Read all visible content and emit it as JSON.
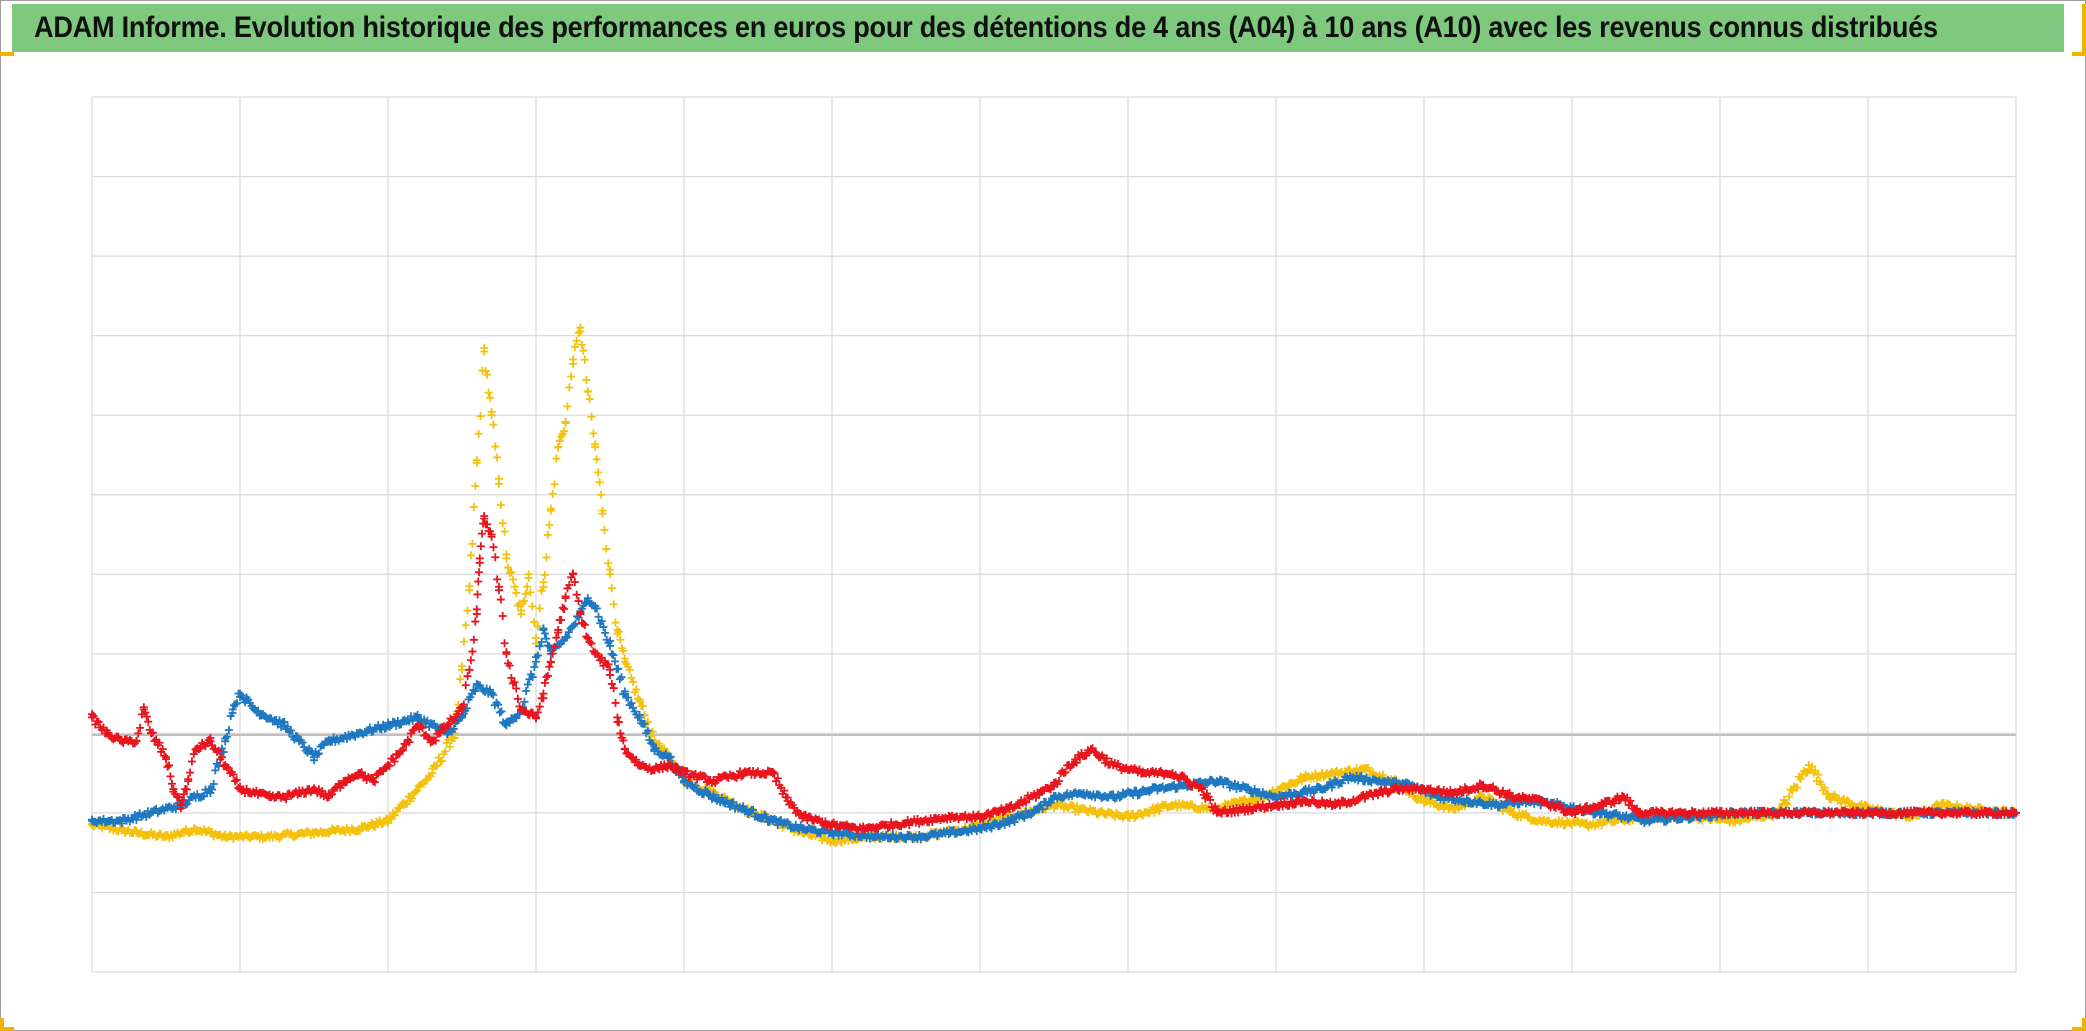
{
  "title": "ADAM Informe. Evolution historique des performances en euros pour des détentions de 4 ans (A04) à 10 ans (A10) avec les revenus connus distribués",
  "colors": {
    "title_background": "#7fc97f",
    "corner_marks": "#f0b400",
    "grid": "#d9d9d9",
    "baseline": "#bfbfbf"
  },
  "chart_data": {
    "type": "scatter",
    "title": "ADAM Informe. Evolution historique des performances en euros pour des détentions de 4 ans (A04) à 10 ans (A10) avec les revenus connus distribués",
    "marker": "plus",
    "grid": true,
    "xlim": [
      0,
      13
    ],
    "ylim": [
      -2,
      9
    ],
    "x_gridlines": 13,
    "y_gridlines": 11,
    "series": [
      {
        "color": "#f4c20d",
        "points": [
          [
            0,
            -0.15
          ],
          [
            0.3,
            -0.25
          ],
          [
            0.5,
            -0.3
          ],
          [
            0.7,
            -0.2
          ],
          [
            0.9,
            -0.3
          ],
          [
            1.2,
            -0.3
          ],
          [
            1.5,
            -0.25
          ],
          [
            1.8,
            -0.2
          ],
          [
            2.0,
            -0.1
          ],
          [
            2.15,
            0.2
          ],
          [
            2.3,
            0.5
          ],
          [
            2.45,
            1.0
          ],
          [
            2.5,
            1.8
          ],
          [
            2.55,
            2.8
          ],
          [
            2.6,
            4.4
          ],
          [
            2.65,
            5.8
          ],
          [
            2.7,
            5.0
          ],
          [
            2.75,
            4.2
          ],
          [
            2.8,
            3.2
          ],
          [
            2.9,
            2.5
          ],
          [
            2.95,
            3.0
          ],
          [
            3.0,
            2.2
          ],
          [
            3.05,
            2.9
          ],
          [
            3.1,
            3.8
          ],
          [
            3.15,
            4.6
          ],
          [
            3.2,
            4.9
          ],
          [
            3.25,
            5.7
          ],
          [
            3.3,
            6.1
          ],
          [
            3.35,
            5.3
          ],
          [
            3.4,
            4.6
          ],
          [
            3.45,
            3.8
          ],
          [
            3.5,
            3.0
          ],
          [
            3.55,
            2.3
          ],
          [
            3.6,
            1.9
          ],
          [
            3.7,
            1.4
          ],
          [
            3.8,
            0.9
          ],
          [
            3.9,
            0.7
          ],
          [
            4.0,
            0.4
          ],
          [
            4.2,
            0.25
          ],
          [
            4.4,
            0.05
          ],
          [
            4.6,
            -0.1
          ],
          [
            4.8,
            -0.25
          ],
          [
            5.0,
            -0.35
          ],
          [
            5.3,
            -0.3
          ],
          [
            5.6,
            -0.3
          ],
          [
            5.9,
            -0.2
          ],
          [
            6.1,
            -0.1
          ],
          [
            6.3,
            0.0
          ],
          [
            6.5,
            0.1
          ],
          [
            6.8,
            0.0
          ],
          [
            7.0,
            -0.05
          ],
          [
            7.3,
            0.1
          ],
          [
            7.6,
            0.05
          ],
          [
            7.9,
            0.2
          ],
          [
            8.2,
            0.45
          ],
          [
            8.4,
            0.5
          ],
          [
            8.6,
            0.55
          ],
          [
            8.8,
            0.4
          ],
          [
            9.0,
            0.15
          ],
          [
            9.2,
            0.05
          ],
          [
            9.4,
            0.2
          ],
          [
            9.6,
            0.0
          ],
          [
            9.8,
            -0.1
          ],
          [
            10.1,
            -0.15
          ],
          [
            10.5,
            -0.05
          ],
          [
            10.8,
            -0.05
          ],
          [
            11.1,
            -0.1
          ],
          [
            11.4,
            0.0
          ],
          [
            11.6,
            0.6
          ],
          [
            11.75,
            0.2
          ],
          [
            12.0,
            0.05
          ],
          [
            12.3,
            -0.05
          ],
          [
            12.5,
            0.1
          ],
          [
            12.7,
            0.05
          ],
          [
            13.0,
            0.0
          ]
        ]
      },
      {
        "color": "#1f78c1",
        "points": [
          [
            0,
            -0.1
          ],
          [
            0.2,
            -0.1
          ],
          [
            0.4,
            0.0
          ],
          [
            0.6,
            0.1
          ],
          [
            0.8,
            0.3
          ],
          [
            0.9,
            0.9
          ],
          [
            0.95,
            1.3
          ],
          [
            1.0,
            1.5
          ],
          [
            1.1,
            1.3
          ],
          [
            1.3,
            1.1
          ],
          [
            1.4,
            0.9
          ],
          [
            1.5,
            0.7
          ],
          [
            1.6,
            0.9
          ],
          [
            1.8,
            1.0
          ],
          [
            2.0,
            1.1
          ],
          [
            2.2,
            1.2
          ],
          [
            2.4,
            1.0
          ],
          [
            2.5,
            1.2
          ],
          [
            2.6,
            1.6
          ],
          [
            2.7,
            1.5
          ],
          [
            2.8,
            1.1
          ],
          [
            2.9,
            1.3
          ],
          [
            3.0,
            1.9
          ],
          [
            3.05,
            2.3
          ],
          [
            3.1,
            2.0
          ],
          [
            3.2,
            2.2
          ],
          [
            3.3,
            2.5
          ],
          [
            3.35,
            2.7
          ],
          [
            3.4,
            2.6
          ],
          [
            3.5,
            2.1
          ],
          [
            3.6,
            1.5
          ],
          [
            3.7,
            1.2
          ],
          [
            3.8,
            0.8
          ],
          [
            3.9,
            0.7
          ],
          [
            4.0,
            0.4
          ],
          [
            4.2,
            0.2
          ],
          [
            4.4,
            0.05
          ],
          [
            4.6,
            -0.1
          ],
          [
            4.8,
            -0.2
          ],
          [
            5.0,
            -0.25
          ],
          [
            5.3,
            -0.3
          ],
          [
            5.6,
            -0.3
          ],
          [
            5.8,
            -0.25
          ],
          [
            6.0,
            -0.2
          ],
          [
            6.2,
            -0.1
          ],
          [
            6.4,
            0.05
          ],
          [
            6.5,
            0.2
          ],
          [
            6.7,
            0.25
          ],
          [
            6.9,
            0.2
          ],
          [
            7.2,
            0.3
          ],
          [
            7.4,
            0.35
          ],
          [
            7.6,
            0.4
          ],
          [
            7.8,
            0.3
          ],
          [
            8.0,
            0.2
          ],
          [
            8.3,
            0.3
          ],
          [
            8.5,
            0.45
          ],
          [
            8.7,
            0.4
          ],
          [
            8.9,
            0.35
          ],
          [
            9.1,
            0.2
          ],
          [
            9.3,
            0.15
          ],
          [
            9.5,
            0.1
          ],
          [
            9.7,
            0.15
          ],
          [
            9.9,
            0.1
          ],
          [
            10.2,
            0.0
          ],
          [
            10.5,
            -0.1
          ],
          [
            10.8,
            -0.05
          ],
          [
            11.1,
            0.0
          ],
          [
            11.4,
            0.0
          ],
          [
            11.7,
            0.0
          ],
          [
            12.0,
            0.0
          ],
          [
            12.3,
            0.0
          ],
          [
            12.6,
            0.0
          ],
          [
            13.0,
            0.0
          ]
        ]
      },
      {
        "color": "#e8141e",
        "points": [
          [
            0,
            1.2
          ],
          [
            0.1,
            1.0
          ],
          [
            0.2,
            0.9
          ],
          [
            0.3,
            0.9
          ],
          [
            0.35,
            1.3
          ],
          [
            0.4,
            1.0
          ],
          [
            0.5,
            0.7
          ],
          [
            0.55,
            0.3
          ],
          [
            0.6,
            0.1
          ],
          [
            0.65,
            0.4
          ],
          [
            0.7,
            0.8
          ],
          [
            0.8,
            0.9
          ],
          [
            0.9,
            0.6
          ],
          [
            1.0,
            0.3
          ],
          [
            1.1,
            0.25
          ],
          [
            1.2,
            0.2
          ],
          [
            1.3,
            0.2
          ],
          [
            1.4,
            0.25
          ],
          [
            1.5,
            0.3
          ],
          [
            1.6,
            0.2
          ],
          [
            1.7,
            0.4
          ],
          [
            1.8,
            0.5
          ],
          [
            1.9,
            0.4
          ],
          [
            2.0,
            0.6
          ],
          [
            2.1,
            0.8
          ],
          [
            2.2,
            1.1
          ],
          [
            2.3,
            0.9
          ],
          [
            2.4,
            1.1
          ],
          [
            2.5,
            1.3
          ],
          [
            2.55,
            1.8
          ],
          [
            2.6,
            2.5
          ],
          [
            2.62,
            3.2
          ],
          [
            2.65,
            3.7
          ],
          [
            2.7,
            3.5
          ],
          [
            2.75,
            2.8
          ],
          [
            2.8,
            2.0
          ],
          [
            2.9,
            1.3
          ],
          [
            3.0,
            1.2
          ],
          [
            3.05,
            1.5
          ],
          [
            3.1,
            1.9
          ],
          [
            3.15,
            2.3
          ],
          [
            3.2,
            2.7
          ],
          [
            3.25,
            3.0
          ],
          [
            3.3,
            2.5
          ],
          [
            3.35,
            2.2
          ],
          [
            3.4,
            2.0
          ],
          [
            3.5,
            1.8
          ],
          [
            3.55,
            1.2
          ],
          [
            3.6,
            0.8
          ],
          [
            3.7,
            0.6
          ],
          [
            3.8,
            0.55
          ],
          [
            3.9,
            0.6
          ],
          [
            4.0,
            0.5
          ],
          [
            4.2,
            0.4
          ],
          [
            4.4,
            0.5
          ],
          [
            4.6,
            0.5
          ],
          [
            4.7,
            0.15
          ],
          [
            4.8,
            -0.05
          ],
          [
            5.0,
            -0.15
          ],
          [
            5.2,
            -0.2
          ],
          [
            5.4,
            -0.15
          ],
          [
            5.6,
            -0.1
          ],
          [
            5.8,
            -0.05
          ],
          [
            6.0,
            -0.05
          ],
          [
            6.2,
            0.05
          ],
          [
            6.4,
            0.25
          ],
          [
            6.5,
            0.35
          ],
          [
            6.6,
            0.6
          ],
          [
            6.75,
            0.8
          ],
          [
            6.9,
            0.6
          ],
          [
            7.1,
            0.5
          ],
          [
            7.3,
            0.5
          ],
          [
            7.5,
            0.3
          ],
          [
            7.6,
            0.0
          ],
          [
            7.8,
            0.05
          ],
          [
            8.0,
            0.1
          ],
          [
            8.2,
            0.15
          ],
          [
            8.4,
            0.1
          ],
          [
            8.6,
            0.2
          ],
          [
            8.8,
            0.3
          ],
          [
            9.0,
            0.3
          ],
          [
            9.2,
            0.25
          ],
          [
            9.4,
            0.35
          ],
          [
            9.6,
            0.2
          ],
          [
            9.8,
            0.15
          ],
          [
            10.0,
            0.0
          ],
          [
            10.2,
            0.1
          ],
          [
            10.35,
            0.2
          ],
          [
            10.45,
            0.0
          ],
          [
            10.7,
            0.0
          ],
          [
            11.0,
            0.0
          ],
          [
            11.3,
            0.0
          ],
          [
            11.6,
            0.0
          ],
          [
            11.9,
            0.0
          ],
          [
            12.2,
            0.0
          ],
          [
            12.5,
            0.0
          ],
          [
            12.8,
            0.0
          ],
          [
            13.0,
            0.0
          ]
        ]
      }
    ]
  }
}
